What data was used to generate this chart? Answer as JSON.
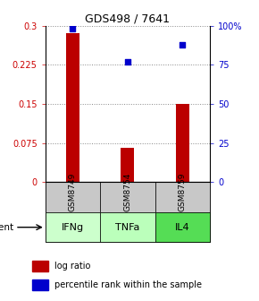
{
  "title": "GDS498 / 7641",
  "samples": [
    "GSM8749",
    "GSM8754",
    "GSM8759"
  ],
  "agents": [
    "IFNg",
    "TNFa",
    "IL4"
  ],
  "log_ratios": [
    0.285,
    0.065,
    0.15
  ],
  "percentile_ranks": [
    98,
    77,
    88
  ],
  "ylim_left": [
    0,
    0.3
  ],
  "ylim_right": [
    0,
    100
  ],
  "yticks_left": [
    0,
    0.075,
    0.15,
    0.225,
    0.3
  ],
  "yticks_right": [
    0,
    25,
    50,
    75,
    100
  ],
  "yticklabels_left": [
    "0",
    "0.075",
    "0.15",
    "0.225",
    "0.3"
  ],
  "yticklabels_right": [
    "0",
    "25",
    "50",
    "75",
    "100%"
  ],
  "bar_color": "#bb0000",
  "dot_color": "#0000cc",
  "sample_box_color": "#c8c8c8",
  "agent_colors": [
    "#ccffcc",
    "#bbffbb",
    "#55dd55"
  ],
  "grid_color": "#888888",
  "legend_bar_label": "log ratio",
  "legend_dot_label": "percentile rank within the sample",
  "agent_label": "agent",
  "bar_width": 0.25
}
